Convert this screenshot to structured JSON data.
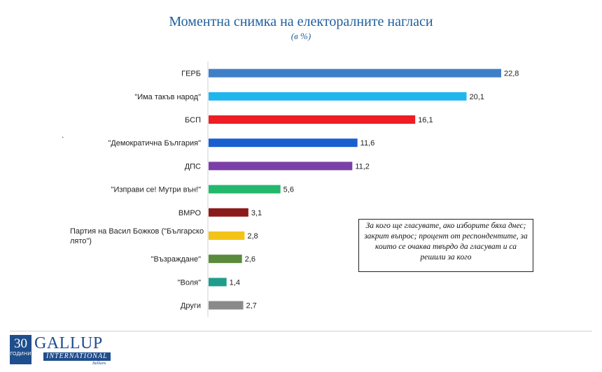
{
  "title": "Моментна снимка на електоралните нагласи",
  "subtitle": "(в %)",
  "dot": ".",
  "note": "За кого ще гласувате, ако изборите бяха днес; закрит въпрос; процент от респондентите, за които се очаква твърдо да гласуват и са решили за кого",
  "logo": {
    "number": "30",
    "years": "ГОДИНИ",
    "name": "GALLUP",
    "sub": "INTERNATIONAL",
    "region": "Balkans"
  },
  "chart_data": {
    "type": "bar",
    "orientation": "horizontal",
    "categories": [
      "ГЕРБ",
      "\"Има такъв народ\"",
      "БСП",
      "\"Демократична България\"",
      "ДПС",
      "\"Изправи се! Мутри вън!\"",
      "ВМРО",
      "Партия на Васил Божков (\"Българско лято\")",
      "\"Възраждане\"",
      "\"Воля\"",
      "Други"
    ],
    "values": [
      22.8,
      20.1,
      16.1,
      11.6,
      11.2,
      5.6,
      3.1,
      2.8,
      2.6,
      1.4,
      2.7
    ],
    "value_labels": [
      "22,8",
      "20,1",
      "16,1",
      "11,6",
      "11,2",
      "5,6",
      "3,1",
      "2,8",
      "2,6",
      "1,4",
      "2,7"
    ],
    "colors": [
      "#3f7fc8",
      "#1fb6ee",
      "#ee1c24",
      "#1a5fcf",
      "#7b3fa8",
      "#23b86b",
      "#8b1a1a",
      "#f3c417",
      "#5a8a3c",
      "#1f9d8c",
      "#8a8a8a"
    ],
    "title": "Моментна снимка на електоралните нагласи",
    "xlim": [
      0,
      24
    ],
    "grid": false,
    "legend": "none"
  }
}
